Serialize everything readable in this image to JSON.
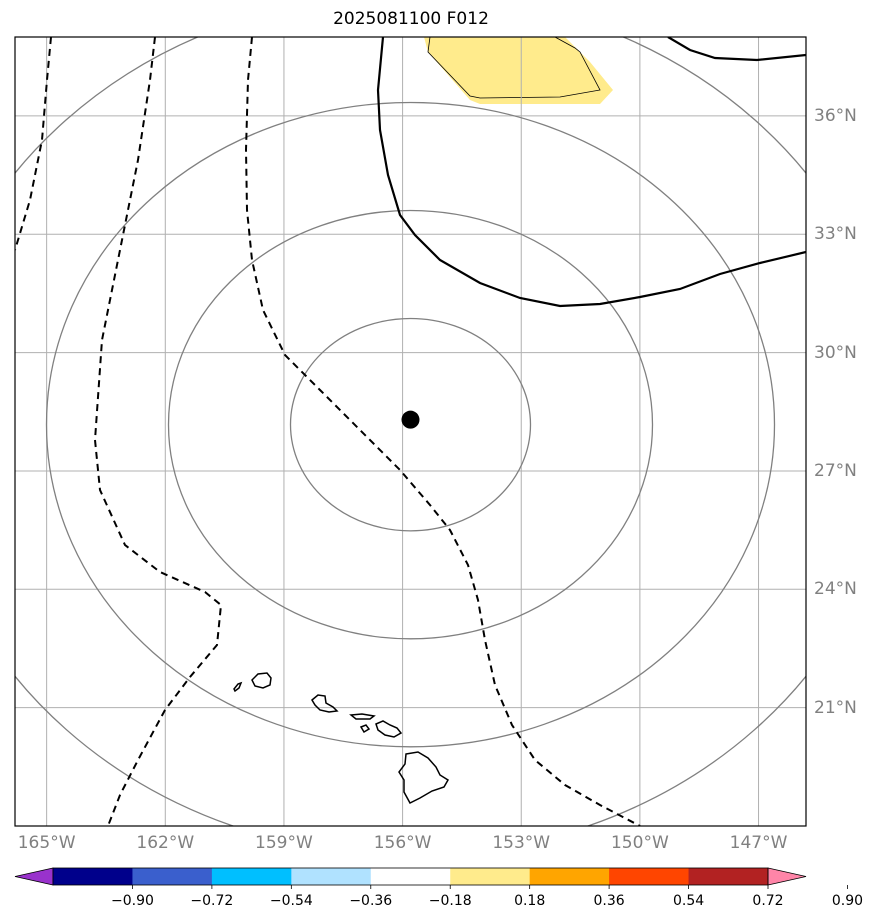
{
  "title": "2025081100 F012",
  "map": {
    "lon_range": [
      -165.8,
      -145.8
    ],
    "lat_range": [
      18,
      38
    ],
    "lon_ticks": [
      {
        "value": -165,
        "label": "165°W"
      },
      {
        "value": -162,
        "label": "162°W"
      },
      {
        "value": -159,
        "label": "159°W"
      },
      {
        "value": -156,
        "label": "156°W"
      },
      {
        "value": -153,
        "label": "153°W"
      },
      {
        "value": -150,
        "label": "150°W"
      },
      {
        "value": -147,
        "label": "147°W"
      }
    ],
    "lat_ticks": [
      {
        "value": 36,
        "label": "36°N"
      },
      {
        "value": 33,
        "label": "33°N"
      },
      {
        "value": 30,
        "label": "30°N"
      },
      {
        "value": 27,
        "label": "27°N"
      },
      {
        "value": 24,
        "label": "24°N"
      },
      {
        "value": 21,
        "label": "21°N"
      }
    ],
    "gridline_color": "#b0b0b0",
    "grid": true,
    "center_marker": {
      "lon": -155.8,
      "lat": 28.3
    },
    "range_ring_color": "#808080",
    "fill_color": "#ffeb8c"
  },
  "colorbar": {
    "colors": [
      "#9932cc",
      "#00008b",
      "#3a5fcd",
      "#00bfff",
      "#b0e2ff",
      "#ffffff",
      "#ffeb8c",
      "#ffa500",
      "#ff4500",
      "#b22222",
      "#ff85a8"
    ],
    "tick_labels": [
      "−0.90",
      "−0.72",
      "−0.54",
      "−0.36",
      "−0.18",
      "0.18",
      "0.36",
      "0.54",
      "0.72",
      "0.90"
    ],
    "extend": "both"
  }
}
